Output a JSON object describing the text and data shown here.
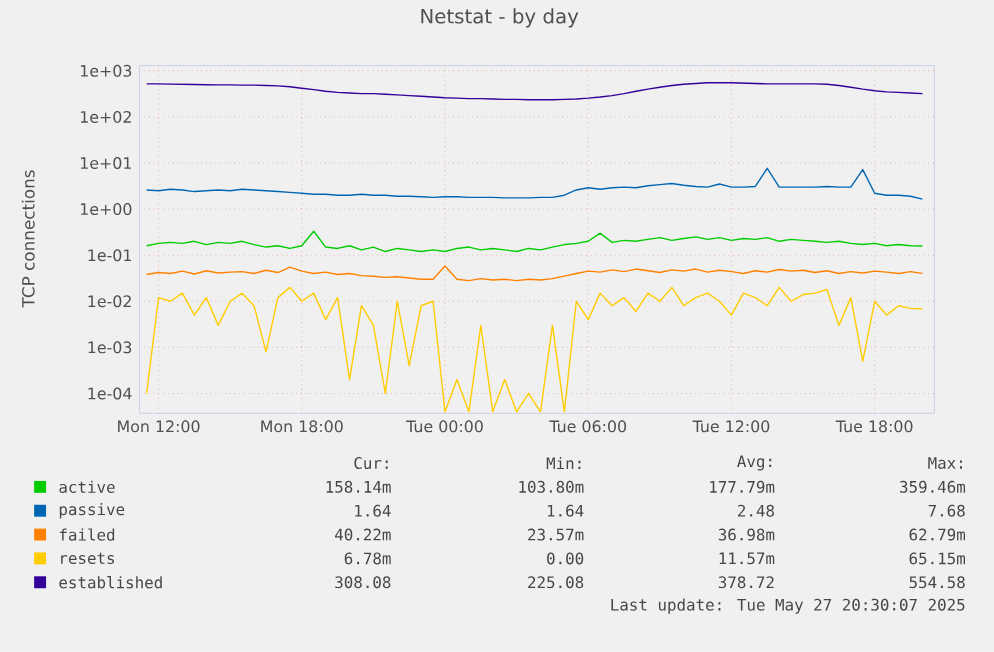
{
  "chart_data": {
    "type": "line",
    "title": "Netstat - by day",
    "ylabel": "TCP connections",
    "log": "y",
    "grid": true,
    "legend": "bottom",
    "line_style": "solid",
    "marker": "none",
    "x": [
      "2025-05-26T11:30",
      "2025-05-26T12:00",
      "2025-05-26T12:30",
      "2025-05-26T13:00",
      "2025-05-26T13:30",
      "2025-05-26T14:00",
      "2025-05-26T14:30",
      "2025-05-26T15:00",
      "2025-05-26T15:30",
      "2025-05-26T16:00",
      "2025-05-26T16:30",
      "2025-05-26T17:00",
      "2025-05-26T17:30",
      "2025-05-26T18:00",
      "2025-05-26T18:30",
      "2025-05-26T19:00",
      "2025-05-26T19:30",
      "2025-05-26T20:00",
      "2025-05-26T20:30",
      "2025-05-26T21:00",
      "2025-05-26T21:30",
      "2025-05-26T22:00",
      "2025-05-26T22:30",
      "2025-05-26T23:00",
      "2025-05-26T23:30",
      "2025-05-27T00:00",
      "2025-05-27T00:30",
      "2025-05-27T01:00",
      "2025-05-27T01:30",
      "2025-05-27T02:00",
      "2025-05-27T02:30",
      "2025-05-27T03:00",
      "2025-05-27T03:30",
      "2025-05-27T04:00",
      "2025-05-27T04:30",
      "2025-05-27T05:00",
      "2025-05-27T05:30",
      "2025-05-27T06:00",
      "2025-05-27T06:30",
      "2025-05-27T07:00",
      "2025-05-27T07:30",
      "2025-05-27T08:00",
      "2025-05-27T08:30",
      "2025-05-27T09:00",
      "2025-05-27T09:30",
      "2025-05-27T10:00",
      "2025-05-27T10:30",
      "2025-05-27T11:00",
      "2025-05-27T11:30",
      "2025-05-27T12:00",
      "2025-05-27T12:30",
      "2025-05-27T13:00",
      "2025-05-27T13:30",
      "2025-05-27T14:00",
      "2025-05-27T14:30",
      "2025-05-27T15:00",
      "2025-05-27T15:30",
      "2025-05-27T16:00",
      "2025-05-27T16:30",
      "2025-05-27T17:00",
      "2025-05-27T17:30",
      "2025-05-27T18:00",
      "2025-05-27T18:30",
      "2025-05-27T19:00",
      "2025-05-27T19:30",
      "2025-05-27T20:00"
    ],
    "xlim": [
      "2025-05-26T11:12",
      "2025-05-27T20:30"
    ],
    "xticks": [
      {
        "value": "2025-05-26T12:00",
        "label": "Mon 12:00"
      },
      {
        "value": "2025-05-26T18:00",
        "label": "Mon 18:00"
      },
      {
        "value": "2025-05-27T00:00",
        "label": "Tue 00:00"
      },
      {
        "value": "2025-05-27T06:00",
        "label": "Tue 06:00"
      },
      {
        "value": "2025-05-27T12:00",
        "label": "Tue 12:00"
      },
      {
        "value": "2025-05-27T18:00",
        "label": "Tue 18:00"
      }
    ],
    "ylim": [
      3.7e-05,
      1300
    ],
    "yticks": [
      {
        "value": 0.0001,
        "label": "1e-04"
      },
      {
        "value": 0.001,
        "label": "1e-03"
      },
      {
        "value": 0.01,
        "label": "1e-02"
      },
      {
        "value": 0.1,
        "label": "1e-01"
      },
      {
        "value": 1,
        "label": "1e+00"
      },
      {
        "value": 10,
        "label": "1e+01"
      },
      {
        "value": 100,
        "label": "1e+02"
      },
      {
        "value": 1000,
        "label": "1e+03"
      }
    ],
    "series": [
      {
        "name": "active",
        "color": "#00cc00",
        "values": [
          0.16,
          0.18,
          0.19,
          0.18,
          0.2,
          0.17,
          0.19,
          0.18,
          0.2,
          0.17,
          0.15,
          0.16,
          0.14,
          0.16,
          0.33,
          0.15,
          0.14,
          0.16,
          0.13,
          0.15,
          0.12,
          0.14,
          0.13,
          0.12,
          0.13,
          0.12,
          0.14,
          0.15,
          0.13,
          0.14,
          0.13,
          0.12,
          0.14,
          0.13,
          0.15,
          0.17,
          0.18,
          0.2,
          0.3,
          0.19,
          0.21,
          0.2,
          0.22,
          0.24,
          0.21,
          0.23,
          0.25,
          0.22,
          0.24,
          0.21,
          0.23,
          0.22,
          0.24,
          0.2,
          0.22,
          0.21,
          0.2,
          0.19,
          0.2,
          0.18,
          0.17,
          0.18,
          0.16,
          0.17,
          0.16,
          0.158
        ]
      },
      {
        "name": "passive",
        "color": "#0066b3",
        "values": [
          2.6,
          2.5,
          2.7,
          2.6,
          2.4,
          2.5,
          2.6,
          2.5,
          2.7,
          2.6,
          2.5,
          2.4,
          2.3,
          2.2,
          2.1,
          2.1,
          2.0,
          2.0,
          2.1,
          2.0,
          2.0,
          1.9,
          1.9,
          1.85,
          1.8,
          1.85,
          1.85,
          1.8,
          1.8,
          1.8,
          1.75,
          1.75,
          1.75,
          1.8,
          1.8,
          2.0,
          2.6,
          2.9,
          2.7,
          2.9,
          3.0,
          2.9,
          3.2,
          3.4,
          3.6,
          3.3,
          3.1,
          3.0,
          3.5,
          3.0,
          3.0,
          3.1,
          7.68,
          3.0,
          3.0,
          3.0,
          3.0,
          3.1,
          3.0,
          3.0,
          7.2,
          2.2,
          2.0,
          2.0,
          1.9,
          1.64
        ]
      },
      {
        "name": "failed",
        "color": "#ff8000",
        "values": [
          0.038,
          0.042,
          0.04,
          0.045,
          0.039,
          0.046,
          0.041,
          0.043,
          0.044,
          0.04,
          0.047,
          0.042,
          0.055,
          0.045,
          0.04,
          0.043,
          0.038,
          0.04,
          0.036,
          0.035,
          0.033,
          0.034,
          0.032,
          0.03,
          0.03,
          0.058,
          0.03,
          0.028,
          0.031,
          0.029,
          0.03,
          0.028,
          0.03,
          0.029,
          0.031,
          0.035,
          0.04,
          0.045,
          0.043,
          0.048,
          0.044,
          0.05,
          0.046,
          0.042,
          0.048,
          0.045,
          0.05,
          0.043,
          0.047,
          0.044,
          0.04,
          0.046,
          0.043,
          0.049,
          0.045,
          0.047,
          0.042,
          0.046,
          0.04,
          0.044,
          0.041,
          0.045,
          0.043,
          0.04,
          0.044,
          0.0402
        ]
      },
      {
        "name": "resets",
        "color": "#ffcc00",
        "values": [
          0.0001,
          0.012,
          0.01,
          0.015,
          0.005,
          0.012,
          0.003,
          0.01,
          0.015,
          0.008,
          0.0008,
          0.012,
          0.02,
          0.01,
          0.015,
          0.004,
          0.012,
          0.0002,
          0.008,
          0.003,
          0.0001,
          0.01,
          0.0004,
          0.008,
          0.01,
          4e-05,
          0.0002,
          4e-05,
          0.003,
          4e-05,
          0.0002,
          4e-05,
          0.0001,
          4e-05,
          0.003,
          4e-05,
          0.01,
          0.004,
          0.015,
          0.008,
          0.012,
          0.006,
          0.015,
          0.01,
          0.02,
          0.008,
          0.012,
          0.015,
          0.01,
          0.005,
          0.015,
          0.012,
          0.008,
          0.02,
          0.01,
          0.014,
          0.015,
          0.018,
          0.003,
          0.012,
          0.0005,
          0.01,
          0.005,
          0.008,
          0.007,
          0.00678
        ]
      },
      {
        "name": "established",
        "color": "#330099",
        "values": [
          520,
          520,
          515,
          510,
          505,
          500,
          495,
          495,
          490,
          490,
          480,
          470,
          450,
          420,
          390,
          360,
          340,
          330,
          320,
          320,
          310,
          300,
          290,
          280,
          270,
          260,
          255,
          250,
          250,
          245,
          240,
          240,
          235,
          235,
          235,
          240,
          245,
          255,
          270,
          290,
          320,
          360,
          400,
          440,
          480,
          510,
          530,
          550,
          554,
          550,
          540,
          530,
          520,
          520,
          520,
          520,
          520,
          510,
          480,
          440,
          400,
          370,
          350,
          340,
          330,
          320
        ]
      }
    ],
    "annotations": [
      "Cur:",
      "Min:",
      "Avg:",
      "Max:",
      "158.14m",
      "103.80m",
      "177.79m",
      "359.46m",
      "1.64",
      "1.64",
      "2.48",
      "7.68",
      "40.22m",
      "23.57m",
      "36.98m",
      "62.79m",
      "6.78m",
      "0.00",
      "11.57m",
      "65.15m",
      "308.08",
      "225.08",
      "378.72",
      "554.58",
      "Last update: Tue May 27 20:30:07 2025"
    ]
  }
}
